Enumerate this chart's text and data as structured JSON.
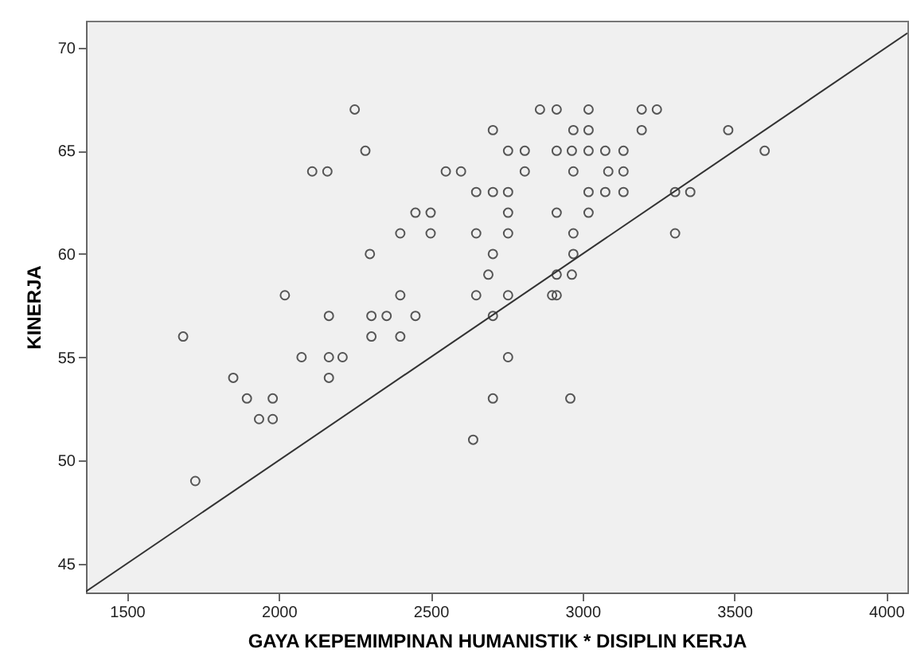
{
  "chart_data": {
    "type": "scatter",
    "xlabel": "GAYA KEPEMIMPINAN HUMANISTIK * DISIPLIN KERJA",
    "ylabel": "KINERJA",
    "xlim": [
      1365,
      4070
    ],
    "ylim": [
      43.6,
      71.3
    ],
    "xticks": [
      1500,
      2000,
      2500,
      3000,
      3500,
      4000
    ],
    "yticks": [
      45,
      50,
      55,
      60,
      65,
      70
    ],
    "grid": false,
    "series": [
      {
        "marker": "circle",
        "color": "#555555",
        "x": [
          2250,
          2860,
          2915,
          3020,
          3195,
          3245,
          2705,
          2970,
          3020,
          3195,
          3480,
          2285,
          2755,
          2810,
          2915,
          2965,
          3020,
          3075,
          3135,
          3600,
          2110,
          2160,
          2550,
          2600,
          2810,
          2970,
          3085,
          3135,
          2650,
          2705,
          2755,
          3020,
          3075,
          3135,
          3305,
          3355,
          2450,
          2500,
          2755,
          2915,
          3020,
          2400,
          2500,
          2650,
          2755,
          2970,
          3305,
          2300,
          2705,
          2970,
          2690,
          2915,
          2965,
          2020,
          2400,
          2650,
          2755,
          2900,
          2915,
          2165,
          2305,
          2355,
          2450,
          2705,
          1685,
          2305,
          2400,
          2075,
          2165,
          2210,
          2755,
          1850,
          2165,
          1895,
          1980,
          2705,
          2960,
          1935,
          1980,
          2640,
          1725
        ],
        "values": [
          67,
          67,
          67,
          67,
          67,
          67,
          66,
          66,
          66,
          66,
          66,
          65,
          65,
          65,
          65,
          65,
          65,
          65,
          65,
          65,
          64,
          64,
          64,
          64,
          64,
          64,
          64,
          64,
          63,
          63,
          63,
          63,
          63,
          63,
          63,
          63,
          62,
          62,
          62,
          62,
          62,
          61,
          61,
          61,
          61,
          61,
          61,
          60,
          60,
          60,
          59,
          59,
          59,
          58,
          58,
          58,
          58,
          58,
          58,
          57,
          57,
          57,
          57,
          57,
          56,
          56,
          56,
          55,
          55,
          55,
          55,
          54,
          54,
          53,
          53,
          53,
          53,
          52,
          52,
          51,
          49
        ]
      },
      {
        "type": "line",
        "color": "#333333",
        "x": [
          1365,
          4070
        ],
        "values": [
          43.65,
          70.7
        ]
      }
    ]
  }
}
